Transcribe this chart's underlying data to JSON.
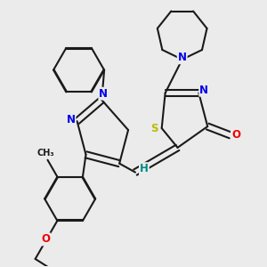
{
  "background_color": "#ebebeb",
  "bond_color": "#1a1a1a",
  "N_color": "#0000ee",
  "S_color": "#bbbb00",
  "O_color": "#ee0000",
  "H_color": "#008888",
  "line_width": 1.5,
  "dbo": 0.018,
  "fs": 8.5,
  "fig_width": 3.0,
  "fig_height": 3.0,
  "dpi": 100,
  "xlim": [
    -3.5,
    3.5
  ],
  "ylim": [
    -4.0,
    3.5
  ]
}
